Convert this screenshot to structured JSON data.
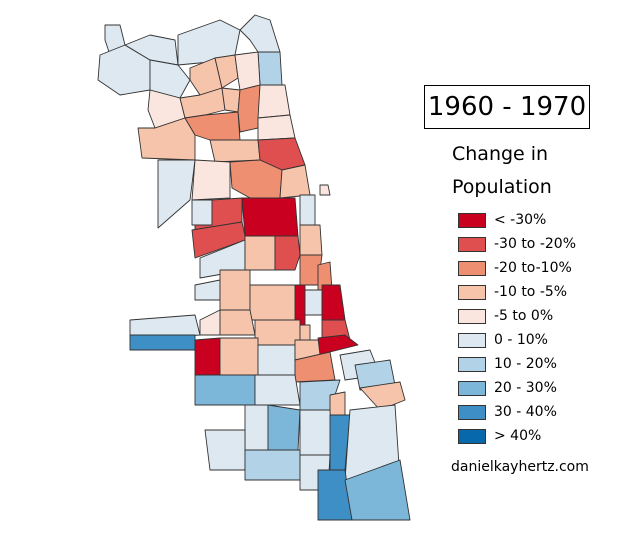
{
  "title": "1960 - 1970",
  "legend": {
    "title_line1": "Change in",
    "title_line2": "Population",
    "items": [
      {
        "label": "< -30%",
        "color": "#ca0020"
      },
      {
        "label": "-30 to -20%",
        "color": "#e04f4f"
      },
      {
        "label": "-20 to-10%",
        "color": "#ef8f72"
      },
      {
        "label": "-10 to -5%",
        "color": "#f6c3ab"
      },
      {
        "label": "-5 to 0%",
        "color": "#fae6df"
      },
      {
        "label": "0 - 10%",
        "color": "#dde8f0"
      },
      {
        "label": "10 - 20%",
        "color": "#b2d3e7"
      },
      {
        "label": "20 - 30%",
        "color": "#7cb6d8"
      },
      {
        "label": "30 - 40%",
        "color": "#3d8fc5"
      },
      {
        "label": "> 40%",
        "color": "#0868ac"
      }
    ]
  },
  "credit": "danielkayhertz.com"
}
